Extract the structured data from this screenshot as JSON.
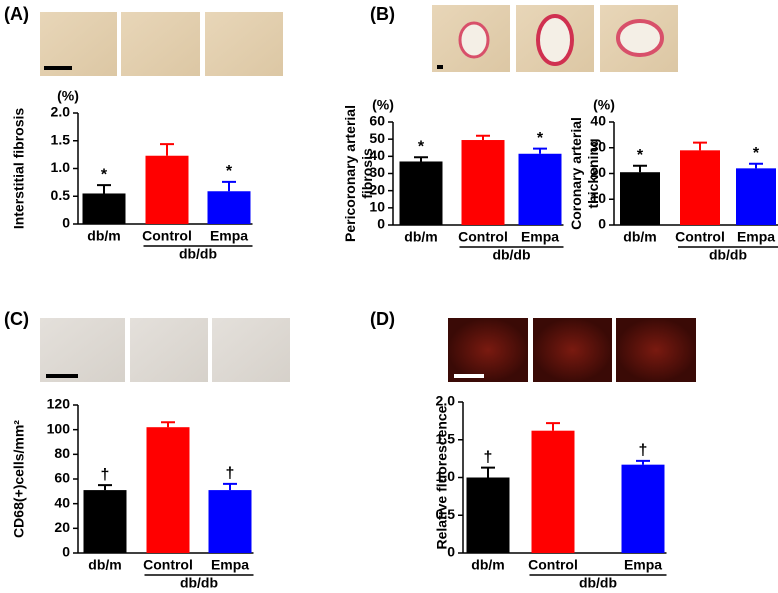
{
  "panel_labels": [
    "(A)",
    "(B)",
    "(C)",
    "(D)"
  ],
  "chart_data": [
    {
      "type": "bar",
      "y_label": [
        "Interstitial fibrosis"
      ],
      "unit": "(%)",
      "categories": [
        "db/m",
        "Control",
        "Empa"
      ],
      "group_label": "db/db",
      "values": [
        0.55,
        1.23,
        0.59
      ],
      "errors": [
        0.15,
        0.21,
        0.17
      ],
      "markers": [
        "*",
        null,
        "*"
      ],
      "colors": [
        "#000000",
        "#ff0000",
        "#0000ff"
      ],
      "ylim": [
        0,
        2
      ],
      "yticks": [
        0,
        0.5,
        {
          "value": 1,
          "label": "1.0"
        },
        1.5,
        {
          "value": 2,
          "label": "2.0"
        }
      ]
    },
    {
      "type": "bar",
      "y_label": [
        "Pericoronary arterial",
        "fibrosis"
      ],
      "unit": "(%)",
      "categories": [
        "db/m",
        "Control",
        "Empa"
      ],
      "group_label": "db/db",
      "values": [
        37,
        49.5,
        41.5
      ],
      "errors": [
        2.5,
        2.5,
        3
      ],
      "markers": [
        "*",
        null,
        "*"
      ],
      "colors": [
        "#000000",
        "#ff0000",
        "#0000ff"
      ],
      "ylim": [
        0,
        60
      ],
      "yticks": [
        0,
        10,
        20,
        30,
        40,
        50,
        60
      ]
    },
    {
      "type": "bar",
      "y_label": [
        "Coronary arterial",
        "thickening"
      ],
      "unit": "(%)",
      "categories": [
        "db/m",
        "Control",
        "Empa"
      ],
      "group_label": "db/db",
      "values": [
        20.5,
        29,
        22
      ],
      "errors": [
        2.5,
        3,
        1.8
      ],
      "markers": [
        "*",
        null,
        "*"
      ],
      "colors": [
        "#000000",
        "#ff0000",
        "#0000ff"
      ],
      "ylim": [
        0,
        40
      ],
      "yticks": [
        0,
        10,
        20,
        30,
        40
      ]
    },
    {
      "type": "bar",
      "y_label": [
        "CD68(+)cells/mm²"
      ],
      "categories": [
        "db/m",
        "Control",
        "Empa"
      ],
      "group_label": "db/db",
      "values": [
        51,
        102,
        51
      ],
      "errors": [
        4,
        4,
        5
      ],
      "markers": [
        "†",
        null,
        "†"
      ],
      "colors": [
        "#000000",
        "#ff0000",
        "#0000ff"
      ],
      "ylim": [
        0,
        120
      ],
      "yticks": [
        0,
        20,
        40,
        60,
        80,
        100,
        120
      ]
    },
    {
      "type": "bar",
      "y_label": [
        "Relative fluorescence"
      ],
      "categories": [
        "db/m",
        "Control",
        "Empa"
      ],
      "group_label": "db/db",
      "values": [
        1.0,
        1.62,
        1.17
      ],
      "errors": [
        0.13,
        0.1,
        0.05
      ],
      "markers": [
        "†",
        null,
        "†"
      ],
      "colors": [
        "#000000",
        "#ff0000",
        "#0000ff"
      ],
      "ylim": [
        0,
        2
      ],
      "yticks": [
        0,
        0.5,
        {
          "value": 1,
          "label": "1.0"
        },
        1.5,
        {
          "value": 2,
          "label": "2.0"
        }
      ]
    }
  ]
}
